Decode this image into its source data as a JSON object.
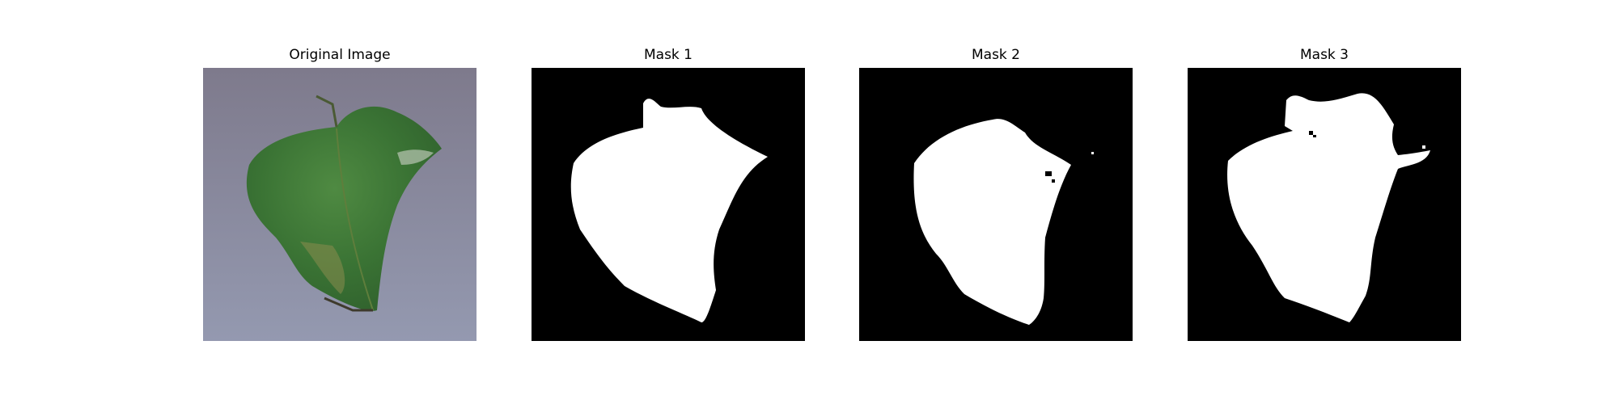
{
  "figure": {
    "panels": [
      {
        "title": "Original Image"
      },
      {
        "title": "Mask 1"
      },
      {
        "title": "Mask 2"
      },
      {
        "title": "Mask 3"
      }
    ]
  },
  "colors": {
    "background": "#ffffff",
    "mask_background": "#000000",
    "mask_foreground": "#ffffff",
    "paper": "#8a8b9e",
    "leaf": "#3f7a3a"
  }
}
